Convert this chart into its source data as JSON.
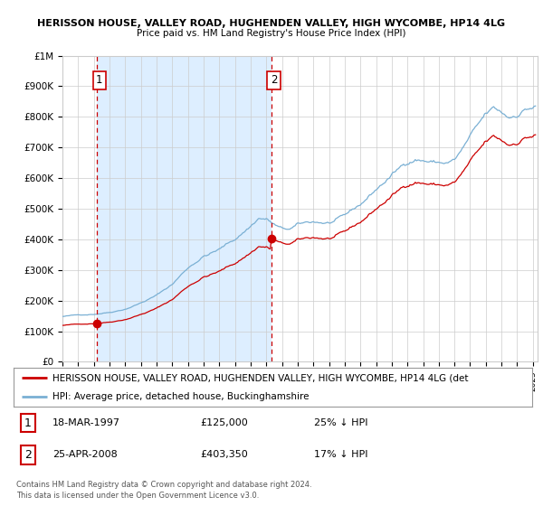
{
  "title1": "HERISSON HOUSE, VALLEY ROAD, HUGHENDEN VALLEY, HIGH WYCOMBE, HP14 4LG",
  "title2": "Price paid vs. HM Land Registry's House Price Index (HPI)",
  "ylim": [
    0,
    1000000
  ],
  "ytick_labels": [
    "£0",
    "£100K",
    "£200K",
    "£300K",
    "£400K",
    "£500K",
    "£600K",
    "£700K",
    "£800K",
    "£900K",
    "£1M"
  ],
  "sale1_date": "18-MAR-1997",
  "sale1_price": 125000,
  "sale2_date": "25-APR-2008",
  "sale2_price": 403350,
  "sale1_hpi_note": "25% ↓ HPI",
  "sale2_hpi_note": "17% ↓ HPI",
  "legend_label1": "HERISSON HOUSE, VALLEY ROAD, HUGHENDEN VALLEY, HIGH WYCOMBE, HP14 4LG (det",
  "legend_label2": "HPI: Average price, detached house, Buckinghamshire",
  "footer1": "Contains HM Land Registry data © Crown copyright and database right 2024.",
  "footer2": "This data is licensed under the Open Government Licence v3.0.",
  "price_color": "#cc0000",
  "hpi_color": "#7ab0d4",
  "shade_color": "#ddeeff",
  "plot_bg_color": "#ffffff",
  "grid_color": "#cccccc",
  "vline_color": "#cc0000",
  "sale1_x": 1997.21,
  "sale2_x": 2008.32,
  "xlim_left": 1995.0,
  "xlim_right": 2025.3
}
